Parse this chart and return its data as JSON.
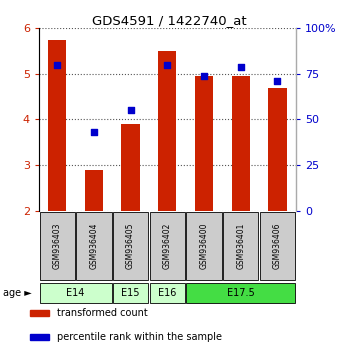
{
  "title": "GDS4591 / 1422740_at",
  "samples": [
    "GSM936403",
    "GSM936404",
    "GSM936405",
    "GSM936402",
    "GSM936400",
    "GSM936401",
    "GSM936406"
  ],
  "transformed_counts": [
    5.75,
    2.9,
    3.9,
    5.5,
    4.95,
    4.95,
    4.7
  ],
  "percentile_ranks": [
    80,
    43,
    55,
    80,
    74,
    79,
    71
  ],
  "bar_bottom": 2.0,
  "ylim_left": [
    2,
    6
  ],
  "ylim_right": [
    0,
    100
  ],
  "yticks_left": [
    2,
    3,
    4,
    5,
    6
  ],
  "yticks_right": [
    0,
    25,
    50,
    75,
    100
  ],
  "ytick_labels_right": [
    "0",
    "25",
    "50",
    "75",
    "100%"
  ],
  "bar_color": "#cc2200",
  "dot_color": "#0000cc",
  "age_groups": [
    {
      "label": "E14",
      "spans": [
        0,
        2
      ],
      "color": "#ccffcc"
    },
    {
      "label": "E15",
      "spans": [
        2,
        3
      ],
      "color": "#ccffcc"
    },
    {
      "label": "E16",
      "spans": [
        3,
        4
      ],
      "color": "#ccffcc"
    },
    {
      "label": "E17.5",
      "spans": [
        4,
        7
      ],
      "color": "#44dd44"
    }
  ],
  "sample_box_color": "#cccccc",
  "legend_entries": [
    {
      "color": "#cc2200",
      "label": "transformed count"
    },
    {
      "color": "#0000cc",
      "label": "percentile rank within the sample"
    }
  ],
  "grid_color": "#888888",
  "background_color": "#ffffff"
}
